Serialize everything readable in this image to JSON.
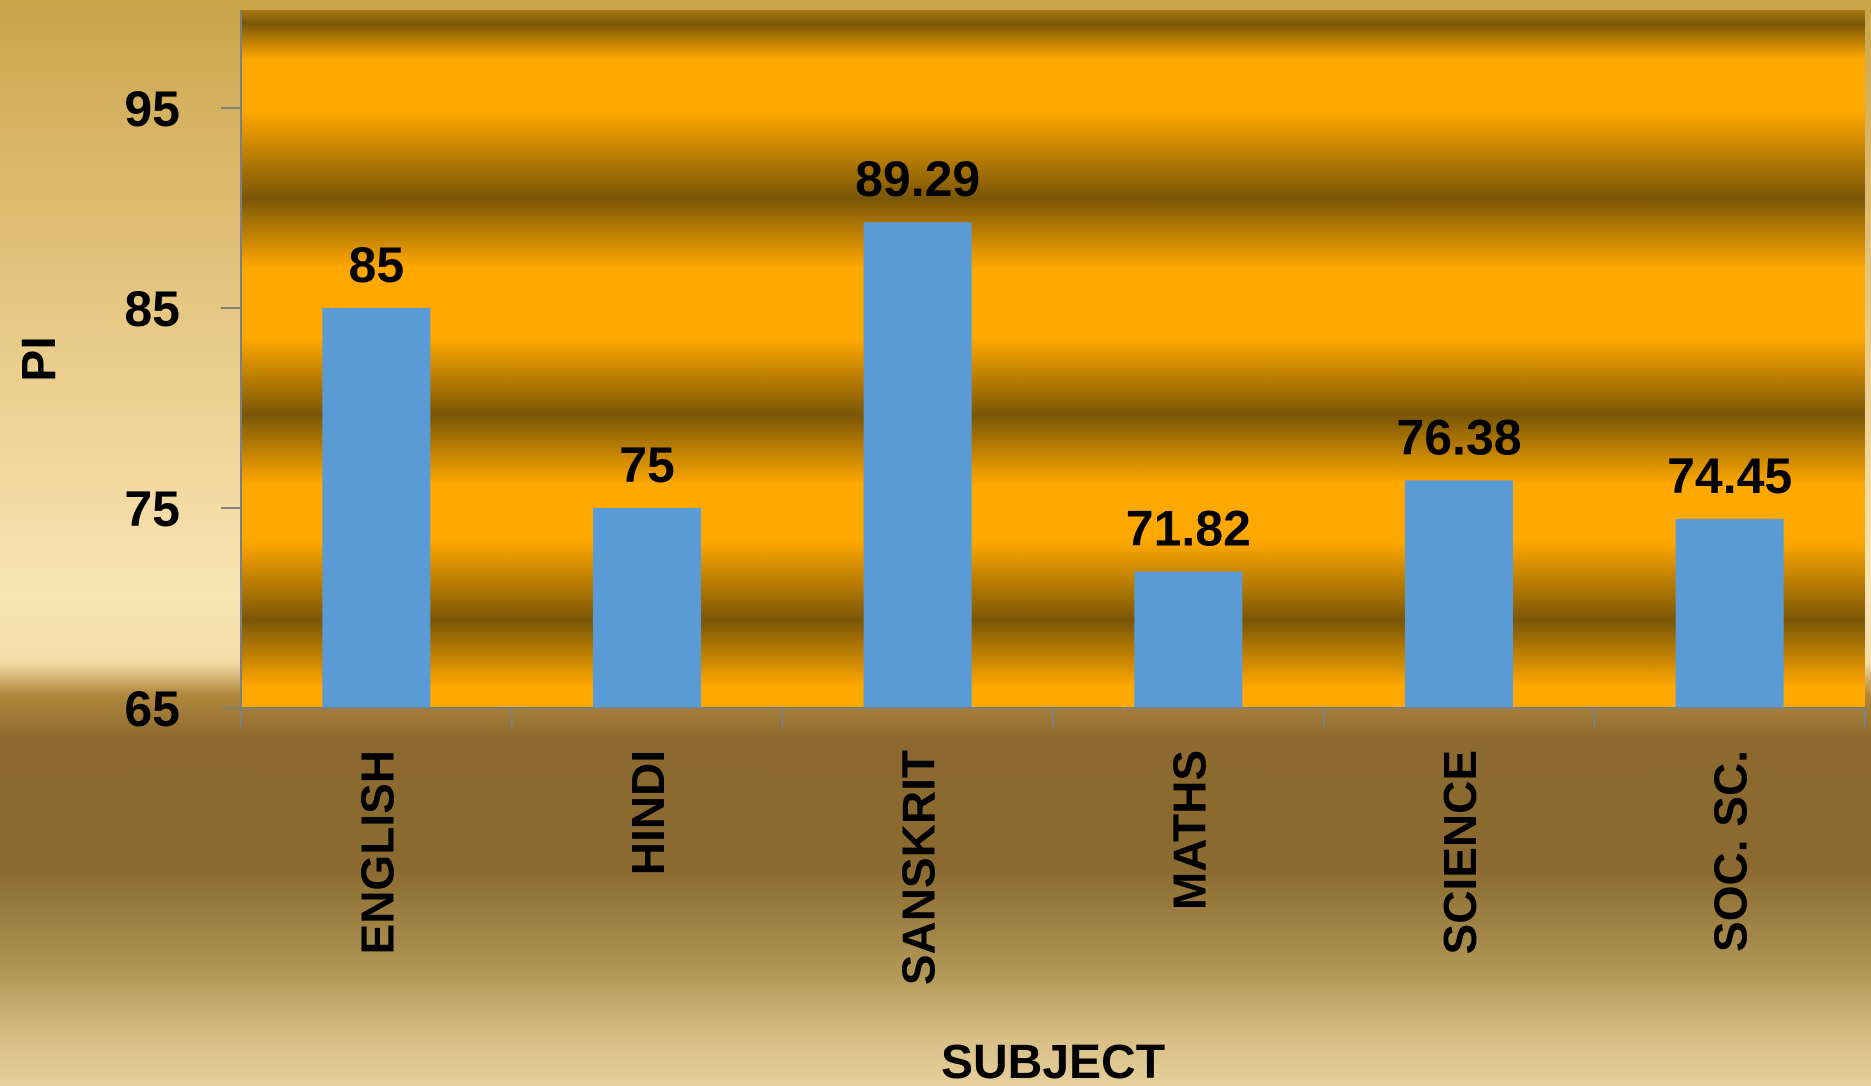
{
  "chart_data": {
    "type": "bar",
    "categories": [
      "ENGLISH",
      "HINDI",
      "SANSKRIT",
      "MATHS",
      "SCIENCE",
      "SOC. SC."
    ],
    "values": [
      85,
      75,
      89.29,
      71.82,
      76.38,
      74.45
    ],
    "data_labels": [
      "85",
      "75",
      "89.29",
      "71.82",
      "76.38",
      "74.45"
    ],
    "xlabel": "SUBJECT",
    "ylabel": "PI",
    "ylim": [
      65,
      100
    ],
    "yticks": [
      65,
      75,
      85,
      95
    ],
    "grid": false,
    "legend": "none",
    "colors": {
      "bar": "#5b9bd5",
      "plot_band_light": "#ffa800",
      "plot_band_dark": "#7a5606"
    }
  }
}
